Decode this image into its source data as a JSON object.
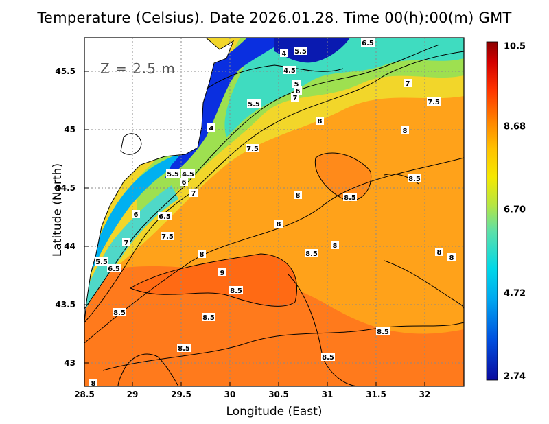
{
  "title": "Temperature (Celsius). Date 2026.01.28. Time 00(h):00(m) GMT",
  "depth_label": "Z = 2.5 m",
  "x_axis": {
    "label": "Longitude (East)",
    "range": [
      28.5,
      32.4
    ],
    "ticks": [
      "28.5",
      "29",
      "29.5",
      "30",
      "30.5",
      "31",
      "31.5",
      "32"
    ]
  },
  "y_axis": {
    "label": "Latitude (North)",
    "range": [
      42.8,
      45.8
    ],
    "ticks": [
      "43",
      "43.5",
      "44",
      "44.5",
      "45",
      "45.5"
    ]
  },
  "colorbar": {
    "range": [
      2.74,
      10.5
    ],
    "ticks": [
      "10.5",
      "8.68",
      "6.70",
      "4.72",
      "2.74"
    ],
    "colors": [
      "#8b0000",
      "#d40000",
      "#ff3300",
      "#ff8800",
      "#ffc400",
      "#f5e800",
      "#b8e640",
      "#5de0a8",
      "#00d8e8",
      "#00a8f0",
      "#0050e0",
      "#0a0a9e"
    ]
  },
  "grid": "dotted",
  "contour_labels": [
    "4",
    "4.5",
    "5",
    "5.5",
    "6",
    "6.5",
    "7",
    "7.5",
    "8",
    "8.5",
    "9"
  ]
}
